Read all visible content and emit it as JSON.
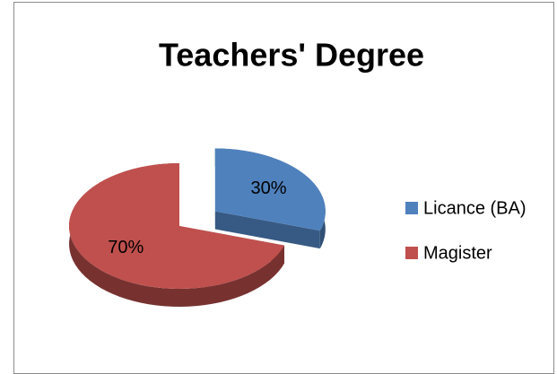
{
  "chart_data": {
    "type": "pie",
    "title": "Teachers' Degree",
    "categories": [
      "Licance (BA)",
      "Magister"
    ],
    "values": [
      30,
      70
    ],
    "value_labels": [
      "30%",
      "70%"
    ],
    "colors": [
      "#4f81bd",
      "#c0504d"
    ],
    "legend": "right",
    "exploded": [
      true,
      false
    ],
    "three_d": true
  }
}
